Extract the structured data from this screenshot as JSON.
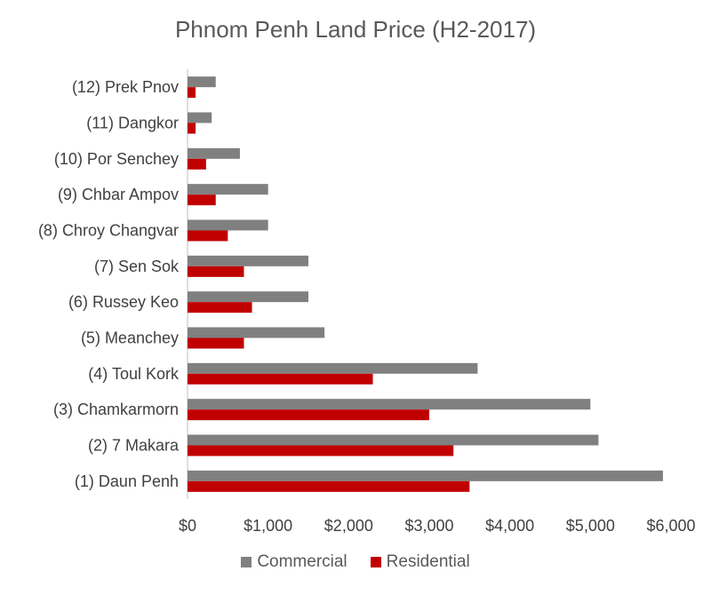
{
  "chart_data": {
    "type": "bar",
    "orientation": "horizontal",
    "title": "Phnom Penh Land Price (H2-2017)",
    "categories": [
      "(12) Prek Pnov",
      "(11) Dangkor",
      "(10) Por Senchey",
      "(9) Chbar Ampov",
      "(8) Chroy Changvar",
      "(7) Sen Sok",
      "(6) Russey Keo",
      "(5) Meanchey",
      "(4) Toul Kork",
      "(3) Chamkarmorn",
      "(2) 7 Makara",
      "(1) Daun Penh"
    ],
    "series": [
      {
        "name": "Commercial",
        "color": "#808080",
        "values": [
          350,
          300,
          650,
          1000,
          1000,
          1500,
          1500,
          1700,
          3600,
          5000,
          5100,
          5900
        ]
      },
      {
        "name": "Residential",
        "color": "#c00000",
        "values": [
          100,
          100,
          230,
          350,
          500,
          700,
          800,
          700,
          2300,
          3000,
          3300,
          3500
        ]
      }
    ],
    "xlim": [
      0,
      6000
    ],
    "xticks": [
      0,
      1000,
      2000,
      3000,
      4000,
      5000,
      6000
    ],
    "xtick_labels": [
      "$0",
      "$1,000",
      "$2,000",
      "$3,000",
      "$4,000",
      "$5,000",
      "$6,000"
    ],
    "xlabel": "",
    "ylabel": "",
    "grid": false,
    "legend_position": "bottom"
  }
}
